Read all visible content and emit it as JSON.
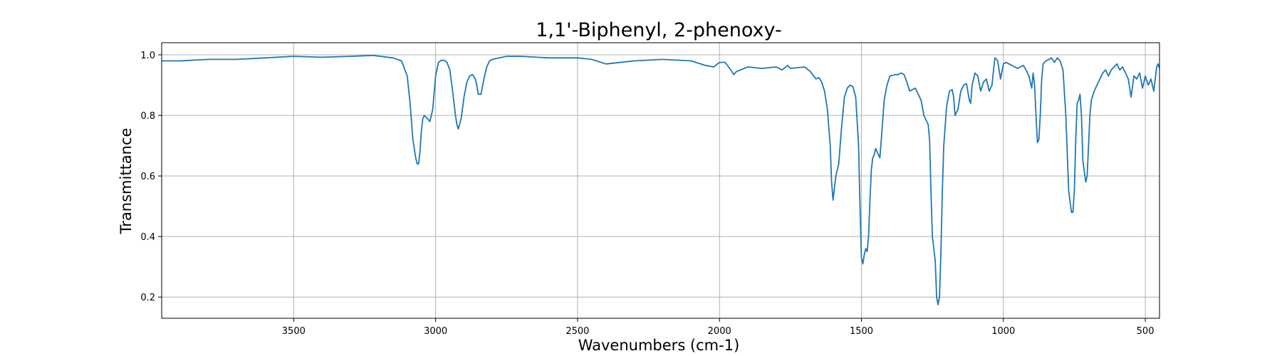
{
  "chart_data": {
    "type": "line",
    "title": "1,1'-Biphenyl, 2-phenoxy-",
    "xlabel": "Wavenumbers (cm-1)",
    "ylabel": "Transmittance",
    "xlim": [
      3965,
      450
    ],
    "ylim": [
      0.13,
      1.04
    ],
    "x_reversed": true,
    "grid": true,
    "xticks": [
      3500,
      3000,
      2500,
      2000,
      1500,
      1000,
      500
    ],
    "yticks": [
      0.2,
      0.4,
      0.6,
      0.8,
      1.0
    ],
    "xtick_labels": [
      "3500",
      "3000",
      "2500",
      "2000",
      "1500",
      "1000",
      "500"
    ],
    "ytick_labels": [
      "0.2",
      "0.4",
      "0.6",
      "0.8",
      "1.0"
    ],
    "series": [
      {
        "color": "#1f77b4",
        "x": [
          3965,
          3900,
          3800,
          3700,
          3600,
          3500,
          3400,
          3300,
          3220,
          3150,
          3120,
          3100,
          3090,
          3080,
          3070,
          3065,
          3060,
          3055,
          3050,
          3045,
          3040,
          3030,
          3020,
          3010,
          3000,
          2990,
          2980,
          2970,
          2960,
          2950,
          2940,
          2930,
          2925,
          2920,
          2910,
          2900,
          2890,
          2880,
          2870,
          2860,
          2855,
          2850,
          2840,
          2830,
          2820,
          2810,
          2800,
          2750,
          2700,
          2600,
          2500,
          2450,
          2400,
          2300,
          2200,
          2100,
          2050,
          2020,
          2000,
          1980,
          1960,
          1950,
          1940,
          1900,
          1850,
          1800,
          1780,
          1760,
          1750,
          1700,
          1680,
          1660,
          1650,
          1640,
          1630,
          1620,
          1610,
          1605,
          1600,
          1595,
          1590,
          1585,
          1580,
          1570,
          1560,
          1550,
          1540,
          1530,
          1520,
          1510,
          1505,
          1500,
          1495,
          1490,
          1485,
          1480,
          1475,
          1470,
          1465,
          1460,
          1455,
          1450,
          1445,
          1440,
          1435,
          1430,
          1420,
          1410,
          1400,
          1380,
          1370,
          1360,
          1350,
          1340,
          1330,
          1320,
          1310,
          1300,
          1290,
          1280,
          1270,
          1265,
          1260,
          1255,
          1250,
          1245,
          1240,
          1235,
          1230,
          1225,
          1220,
          1215,
          1210,
          1200,
          1190,
          1180,
          1175,
          1170,
          1160,
          1150,
          1140,
          1130,
          1120,
          1115,
          1110,
          1100,
          1090,
          1080,
          1070,
          1060,
          1050,
          1040,
          1030,
          1020,
          1010,
          1000,
          990,
          980,
          970,
          960,
          950,
          940,
          930,
          920,
          910,
          900,
          895,
          890,
          885,
          880,
          875,
          870,
          865,
          860,
          850,
          840,
          830,
          820,
          810,
          800,
          790,
          780,
          770,
          760,
          755,
          750,
          745,
          740,
          735,
          730,
          725,
          720,
          710,
          705,
          700,
          695,
          690,
          680,
          670,
          660,
          650,
          640,
          630,
          620,
          610,
          600,
          590,
          580,
          570,
          560,
          550,
          540,
          530,
          520,
          510,
          500,
          490,
          480,
          470,
          460,
          455,
          450
        ],
        "y": [
          0.98,
          0.98,
          0.985,
          0.985,
          0.99,
          0.995,
          0.992,
          0.995,
          0.998,
          0.99,
          0.98,
          0.93,
          0.84,
          0.72,
          0.66,
          0.64,
          0.64,
          0.68,
          0.75,
          0.79,
          0.8,
          0.79,
          0.78,
          0.82,
          0.93,
          0.975,
          0.982,
          0.982,
          0.975,
          0.95,
          0.88,
          0.8,
          0.77,
          0.755,
          0.79,
          0.86,
          0.91,
          0.93,
          0.935,
          0.92,
          0.9,
          0.87,
          0.87,
          0.92,
          0.96,
          0.98,
          0.985,
          0.995,
          0.995,
          0.99,
          0.99,
          0.985,
          0.97,
          0.98,
          0.985,
          0.98,
          0.965,
          0.96,
          0.975,
          0.975,
          0.95,
          0.935,
          0.945,
          0.96,
          0.955,
          0.96,
          0.95,
          0.965,
          0.955,
          0.96,
          0.945,
          0.92,
          0.925,
          0.91,
          0.88,
          0.82,
          0.7,
          0.58,
          0.52,
          0.56,
          0.6,
          0.62,
          0.64,
          0.76,
          0.86,
          0.89,
          0.9,
          0.895,
          0.86,
          0.7,
          0.5,
          0.33,
          0.31,
          0.34,
          0.36,
          0.35,
          0.4,
          0.52,
          0.62,
          0.66,
          0.67,
          0.69,
          0.68,
          0.67,
          0.66,
          0.72,
          0.85,
          0.9,
          0.93,
          0.935,
          0.935,
          0.94,
          0.935,
          0.91,
          0.88,
          0.885,
          0.89,
          0.87,
          0.85,
          0.8,
          0.78,
          0.77,
          0.72,
          0.55,
          0.4,
          0.36,
          0.32,
          0.2,
          0.175,
          0.2,
          0.35,
          0.55,
          0.7,
          0.83,
          0.88,
          0.885,
          0.86,
          0.8,
          0.82,
          0.88,
          0.9,
          0.905,
          0.85,
          0.84,
          0.9,
          0.94,
          0.93,
          0.88,
          0.91,
          0.92,
          0.88,
          0.9,
          0.99,
          0.98,
          0.92,
          0.97,
          0.975,
          0.97,
          0.965,
          0.96,
          0.955,
          0.96,
          0.965,
          0.95,
          0.93,
          0.89,
          0.94,
          0.9,
          0.8,
          0.71,
          0.72,
          0.8,
          0.92,
          0.97,
          0.98,
          0.985,
          0.99,
          0.975,
          0.99,
          0.98,
          0.95,
          0.8,
          0.55,
          0.48,
          0.48,
          0.55,
          0.72,
          0.84,
          0.85,
          0.87,
          0.8,
          0.65,
          0.58,
          0.6,
          0.7,
          0.8,
          0.85,
          0.88,
          0.9,
          0.92,
          0.94,
          0.95,
          0.93,
          0.95,
          0.96,
          0.97,
          0.95,
          0.96,
          0.94,
          0.92,
          0.86,
          0.93,
          0.92,
          0.94,
          0.89,
          0.93,
          0.9,
          0.92,
          0.88,
          0.96,
          0.97,
          0.955
        ]
      }
    ]
  }
}
